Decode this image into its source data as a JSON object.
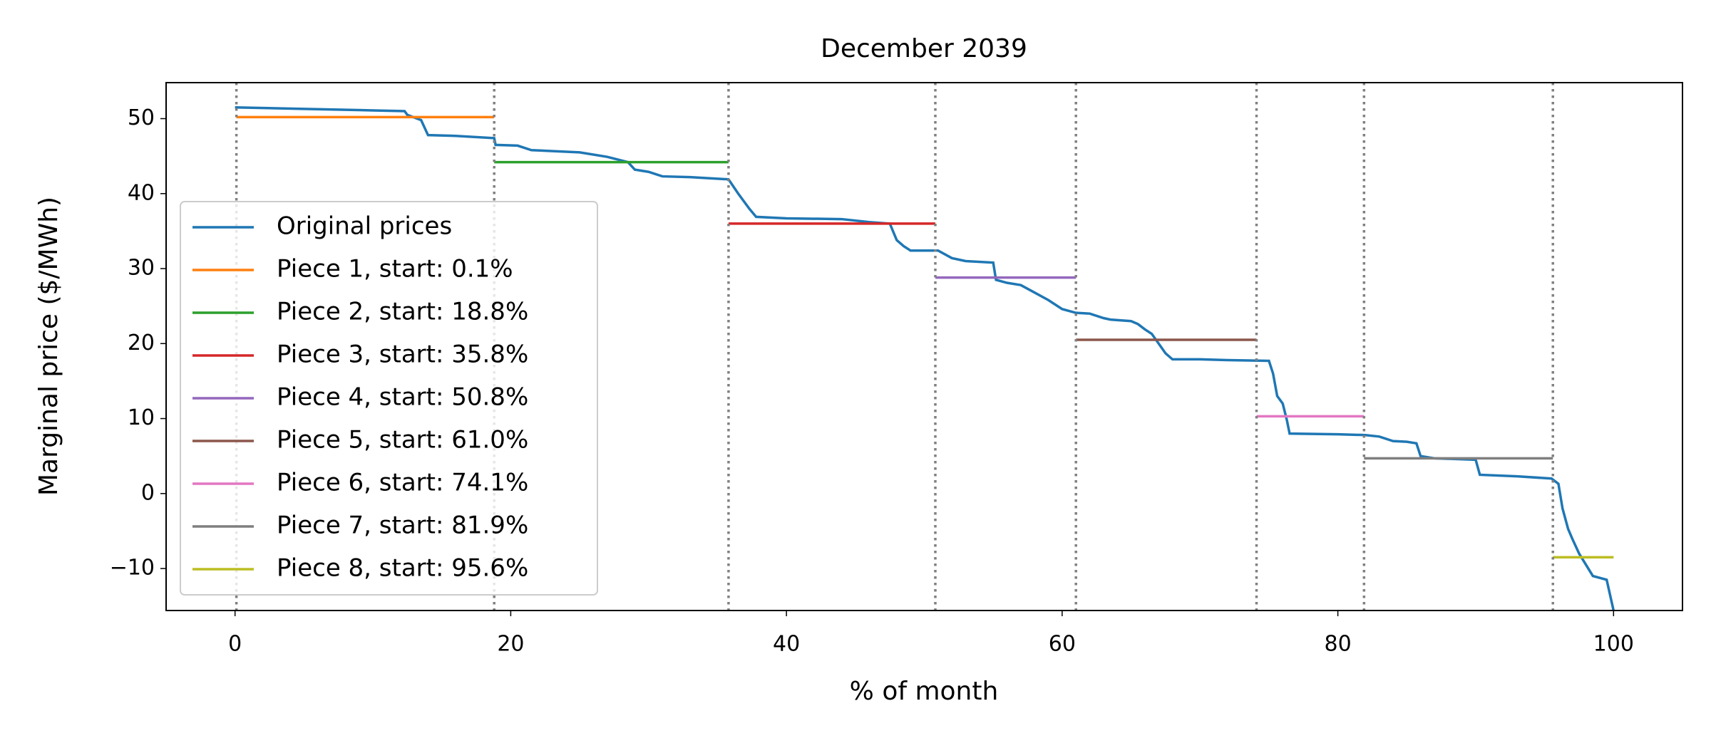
{
  "chart_data": {
    "type": "line",
    "title": "December 2039",
    "xlabel": "% of month",
    "ylabel": "Marginal price ($/MWh)",
    "xlim": [
      -5,
      105
    ],
    "ylim": [
      -15.6,
      54.8
    ],
    "xticks": [
      0,
      20,
      40,
      60,
      80,
      100
    ],
    "yticks": [
      {
        "value": -10,
        "label": "−10"
      },
      0,
      10,
      20,
      30,
      40,
      50
    ],
    "legend": "lower left",
    "vlines": [
      0.1,
      18.8,
      35.8,
      50.8,
      61.0,
      74.1,
      81.9,
      95.6
    ],
    "vline_color": "#808080",
    "series": [
      {
        "name": "Original prices",
        "color": "#1f77b4",
        "x": [
          0,
          5,
          10,
          12.3,
          12.5,
          13.5,
          14,
          16,
          18.8,
          18.9,
          20.5,
          21.5,
          25,
          27,
          28.5,
          29,
          30,
          31,
          33,
          35.8,
          36.5,
          37.3,
          37.8,
          40,
          44,
          46,
          47.5,
          48,
          48.5,
          49,
          51,
          52,
          53,
          55,
          55.2,
          56,
          57,
          58,
          59,
          60,
          61,
          62,
          63,
          63.5,
          65,
          65.5,
          66,
          66.5,
          67,
          67.5,
          68,
          70,
          72,
          75,
          75.3,
          75.6,
          76,
          76.3,
          76.5,
          80,
          82,
          83,
          84,
          85,
          85.7,
          86,
          87,
          90,
          90.3,
          93,
          95.5,
          96,
          96.3,
          96.7,
          97,
          97.5,
          98.5,
          99.5,
          100
        ],
        "values": [
          51.5,
          51.3,
          51.1,
          51,
          50.5,
          49.8,
          47.8,
          47.7,
          47.4,
          46.5,
          46.4,
          45.8,
          45.5,
          44.9,
          44.2,
          43.2,
          42.9,
          42.3,
          42.2,
          41.9,
          40,
          38,
          36.9,
          36.7,
          36.6,
          36.2,
          36,
          33.8,
          33,
          32.4,
          32.4,
          31.4,
          31,
          30.8,
          28.5,
          28.1,
          27.8,
          26.8,
          25.8,
          24.6,
          24.1,
          24,
          23.4,
          23.2,
          23,
          22.6,
          21.9,
          21.3,
          20,
          18.7,
          17.9,
          17.9,
          17.8,
          17.7,
          16,
          13,
          12,
          9.8,
          8,
          7.9,
          7.8,
          7.6,
          7,
          6.9,
          6.7,
          5,
          4.7,
          4.5,
          2.5,
          2.3,
          2,
          1.3,
          -2,
          -4.7,
          -6,
          -8,
          -11,
          -11.5,
          -15.6
        ]
      },
      {
        "name": "Piece 1, start: 0.1%",
        "color": "#ff7f0e",
        "x": [
          0.1,
          18.8
        ],
        "values": [
          50.2,
          50.2
        ]
      },
      {
        "name": "Piece 2, start: 18.8%",
        "color": "#2ca02c",
        "x": [
          18.8,
          35.8
        ],
        "values": [
          44.2,
          44.2
        ]
      },
      {
        "name": "Piece 3, start: 35.8%",
        "color": "#d62728",
        "x": [
          35.8,
          50.8
        ],
        "values": [
          36.0,
          36.0
        ]
      },
      {
        "name": "Piece 4, start: 50.8%",
        "color": "#9467bd",
        "x": [
          50.8,
          61.0
        ],
        "values": [
          28.8,
          28.8
        ]
      },
      {
        "name": "Piece 5, start: 61.0%",
        "color": "#8c564b",
        "x": [
          61.0,
          74.1
        ],
        "values": [
          20.5,
          20.5
        ]
      },
      {
        "name": "Piece 6, start: 74.1%",
        "color": "#e377c2",
        "x": [
          74.1,
          81.9
        ],
        "values": [
          10.3,
          10.3
        ]
      },
      {
        "name": "Piece 7, start: 81.9%",
        "color": "#7f7f7f",
        "x": [
          81.9,
          95.6
        ],
        "values": [
          4.7,
          4.7
        ]
      },
      {
        "name": "Piece 8, start: 95.6%",
        "color": "#bcbd22",
        "x": [
          95.6,
          100
        ],
        "values": [
          -8.5,
          -8.5
        ]
      }
    ]
  }
}
